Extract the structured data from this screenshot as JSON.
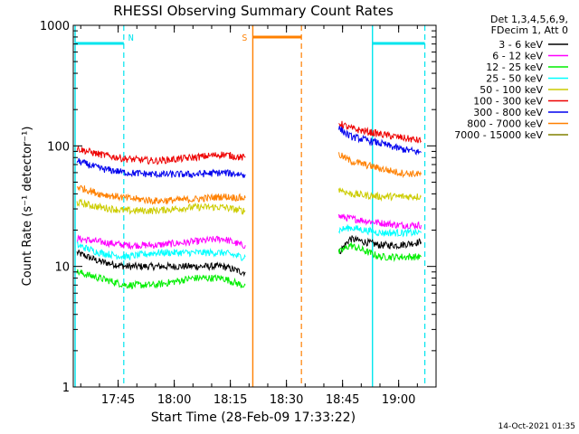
{
  "chart_data": {
    "type": "line",
    "title": "RHESSI Observing Summary Count Rates",
    "xlabel": "Start Time (28-Feb-09 17:33:22)",
    "ylabel": "Count Rate (s⁻¹ detector⁻¹)",
    "yscale": "log",
    "ylim": [
      1,
      1000
    ],
    "xlim": [
      "17:33",
      "19:10"
    ],
    "grid": false,
    "x_ticks": [
      "17:45",
      "18:00",
      "18:15",
      "18:30",
      "18:45",
      "19:00"
    ],
    "y_ticks": [
      "1",
      "10",
      "100",
      "1000"
    ],
    "legend": {
      "placement": "right",
      "header": [
        "Det 1,3,4,5,6,9,",
        "FDecim 1, Att 0"
      ],
      "entries": [
        {
          "label": "3 - 6 keV",
          "color": "#000000"
        },
        {
          "label": "6 - 12 keV",
          "color": "#ff00ff"
        },
        {
          "label": "12 - 25 keV",
          "color": "#00ee00"
        },
        {
          "label": "25 - 50 keV",
          "color": "#00ffff"
        },
        {
          "label": "50 - 100 keV",
          "color": "#cccc00"
        },
        {
          "label": "100 - 300 keV",
          "color": "#ee0000"
        },
        {
          "label": "300 - 800 keV",
          "color": "#0000ee"
        },
        {
          "label": "800 - 7000 keV",
          "color": "#ff8000"
        },
        {
          "label": "7000 - 15000 keV",
          "color": "#808000"
        }
      ]
    },
    "series": [
      {
        "name": "3 - 6 keV",
        "color": "#000000",
        "segments": [
          {
            "x": [
              "17:34",
              "17:40",
              "17:47",
              "17:55",
              "18:05",
              "18:13",
              "18:18",
              "18:19"
            ],
            "y": [
              13,
              11,
              10,
              10,
              10,
              10,
              9,
              9
            ]
          },
          {
            "x": [
              "18:44",
              "18:47",
              "18:55",
              "19:00",
              "19:06"
            ],
            "y": [
              13,
              17,
              15,
              15,
              16
            ]
          }
        ]
      },
      {
        "name": "6 - 12 keV",
        "color": "#ff00ff",
        "segments": [
          {
            "x": [
              "17:34",
              "17:40",
              "17:47",
              "17:55",
              "18:05",
              "18:13",
              "18:18",
              "18:19"
            ],
            "y": [
              17,
              16,
              15,
              15,
              16,
              17,
              15,
              15
            ]
          },
          {
            "x": [
              "18:44",
              "18:47",
              "18:55",
              "19:00",
              "19:06"
            ],
            "y": [
              26,
              25,
              23,
              22,
              22
            ]
          }
        ]
      },
      {
        "name": "12 - 25 keV",
        "color": "#00ee00",
        "segments": [
          {
            "x": [
              "17:34",
              "17:40",
              "17:47",
              "17:55",
              "18:05",
              "18:13",
              "18:18",
              "18:19"
            ],
            "y": [
              9,
              8,
              7,
              7,
              8,
              8,
              7,
              7
            ]
          },
          {
            "x": [
              "18:44",
              "18:47",
              "18:55",
              "19:00",
              "19:06"
            ],
            "y": [
              13,
              15,
              12,
              12,
              12
            ]
          }
        ]
      },
      {
        "name": "25 - 50 keV",
        "color": "#00ffff",
        "segments": [
          {
            "x": [
              "17:34",
              "17:40",
              "17:47",
              "17:55",
              "18:05",
              "18:13",
              "18:18",
              "18:19"
            ],
            "y": [
              15,
              13,
              12,
              13,
              13,
              13,
              12,
              12
            ]
          },
          {
            "x": [
              "18:44",
              "18:47",
              "18:55",
              "19:00",
              "19:06"
            ],
            "y": [
              20,
              21,
              19,
              19,
              19
            ]
          }
        ]
      },
      {
        "name": "50 - 100 keV",
        "color": "#cccc00",
        "segments": [
          {
            "x": [
              "17:34",
              "17:40",
              "17:47",
              "17:55",
              "18:05",
              "18:13",
              "18:18",
              "18:19"
            ],
            "y": [
              34,
              31,
              29,
              29,
              31,
              31,
              29,
              29
            ]
          },
          {
            "x": [
              "18:44",
              "18:47",
              "18:55",
              "19:00",
              "19:06"
            ],
            "y": [
              44,
              40,
              38,
              38,
              38
            ]
          }
        ]
      },
      {
        "name": "100 - 300 keV",
        "color": "#ee0000",
        "segments": [
          {
            "x": [
              "17:34",
              "17:40",
              "17:47",
              "17:55",
              "18:05",
              "18:13",
              "18:18",
              "18:19"
            ],
            "y": [
              95,
              85,
              78,
              75,
              80,
              85,
              80,
              80
            ]
          },
          {
            "x": [
              "18:44",
              "18:47",
              "18:55",
              "19:00",
              "19:06"
            ],
            "y": [
              155,
              140,
              125,
              118,
              110
            ]
          }
        ]
      },
      {
        "name": "300 - 800 keV",
        "color": "#0000ee",
        "segments": [
          {
            "x": [
              "17:34",
              "17:40",
              "17:47",
              "17:55",
              "18:05",
              "18:13",
              "18:18",
              "18:19"
            ],
            "y": [
              75,
              65,
              60,
              58,
              58,
              60,
              58,
              58
            ]
          },
          {
            "x": [
              "18:44",
              "18:47",
              "18:55",
              "19:00",
              "19:06"
            ],
            "y": [
              140,
              120,
              105,
              95,
              88
            ]
          }
        ]
      },
      {
        "name": "800 - 7000 keV",
        "color": "#ff8000",
        "segments": [
          {
            "x": [
              "17:34",
              "17:40",
              "17:47",
              "17:55",
              "18:05",
              "18:13",
              "18:18",
              "18:19"
            ],
            "y": [
              46,
              40,
              37,
              35,
              36,
              38,
              37,
              37
            ]
          },
          {
            "x": [
              "18:44",
              "18:47",
              "18:55",
              "19:00",
              "19:06"
            ],
            "y": [
              85,
              75,
              65,
              60,
              58
            ]
          }
        ]
      },
      {
        "name": "7000 - 15000 keV",
        "color": "#808000",
        "segments": []
      }
    ],
    "markers": [
      {
        "label": "N",
        "color": "#00e5ee",
        "start": "17:33:30",
        "end": "17:46:30"
      },
      {
        "label": "",
        "color": "#00e5ee",
        "start": "18:53",
        "end": "19:07"
      },
      {
        "label": "S",
        "color": "#ff8000",
        "start": "18:21",
        "end": "18:34"
      }
    ]
  },
  "footer": {
    "timestamp": "14-Oct-2021 01:35"
  }
}
